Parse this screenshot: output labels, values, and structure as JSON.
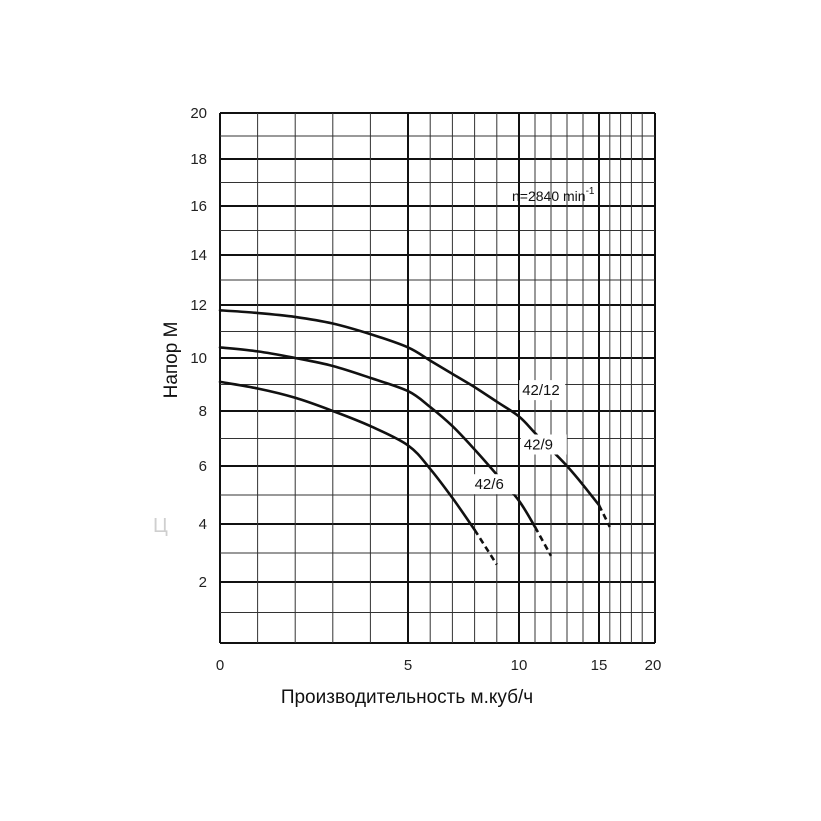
{
  "chart_data": {
    "type": "line",
    "xlabel": "Производительность м.куб/ч",
    "ylabel": "Напор М",
    "x_ticks": [
      "0",
      "5",
      "10",
      "15",
      "20"
    ],
    "y_ticks": [
      "2",
      "4",
      "6",
      "8",
      "10",
      "12",
      "14",
      "16",
      "18",
      "20"
    ],
    "ylim": [
      0,
      20
    ],
    "grid": true,
    "annotation": {
      "base": "n=2840 min",
      "sup": "-1"
    },
    "watermark": "Ц",
    "series": [
      {
        "name": "42/12",
        "x": [
          0,
          1,
          2,
          3,
          4,
          5,
          6,
          7,
          8,
          9,
          10,
          11,
          12,
          13,
          14,
          15,
          16
        ],
        "y": [
          11.8,
          11.7,
          11.55,
          11.3,
          10.9,
          10.4,
          9.9,
          9.4,
          8.9,
          8.35,
          7.8,
          7.2,
          6.6,
          6.0,
          5.35,
          4.65,
          3.9
        ]
      },
      {
        "name": "42/9",
        "x": [
          0,
          1,
          2,
          3,
          4,
          5,
          6,
          7,
          8,
          9,
          10,
          11,
          12
        ],
        "y": [
          10.4,
          10.25,
          10.0,
          9.7,
          9.25,
          8.75,
          8.15,
          7.45,
          6.6,
          5.7,
          4.8,
          3.9,
          2.9
        ]
      },
      {
        "name": "42/6",
        "x": [
          0,
          1,
          2,
          3,
          4,
          5,
          6,
          7,
          8,
          9
        ],
        "y": [
          9.1,
          8.85,
          8.5,
          8.0,
          7.45,
          6.75,
          5.9,
          4.9,
          3.8,
          2.6
        ]
      }
    ]
  }
}
